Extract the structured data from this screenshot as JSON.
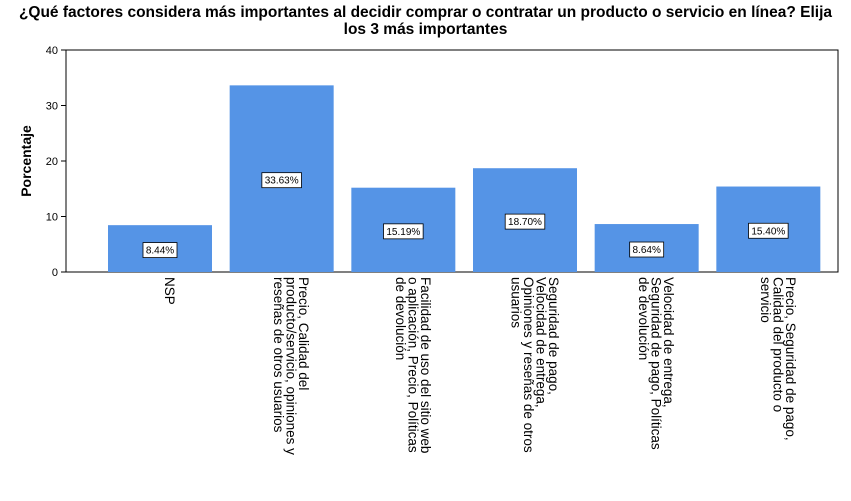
{
  "chart_data": {
    "type": "bar",
    "title": "¿Qué factores considera más importantes al decidir comprar o contratar un producto o servicio en línea? Elija\nlos 3 más importantes",
    "ylabel": "Porcentaje",
    "xlabel": "",
    "ylim": [
      0,
      40
    ],
    "yticks": [
      0,
      10,
      20,
      30,
      40
    ],
    "grid": false,
    "bar_color": "#5594e6",
    "categories": [
      "NSP",
      "Precio, Calidad del producto/servicio, opiniones y reseñas de otros usuarios",
      "Facilidad de uso del sitio web o aplicación, Precio, Políticas de devolución",
      "Seguridad de pago, Velocidad de entrega, Opiniones y reseñas de otros usuarios",
      "Velocidad de entrega, Seguridad de pago, Políticas de devolución",
      "Precio, Seguridad de pago, Calidad del producto o servicio"
    ],
    "category_lines": [
      [
        "NSP"
      ],
      [
        "Precio, Calidad del",
        "producto/servicio, opiniones y",
        "reseñas de otros usuarios"
      ],
      [
        "Facilidad de uso del sitio web",
        "o aplicación, Precio, Políticas",
        "de devolución"
      ],
      [
        "Seguridad de pago,",
        "Velocidad de entrega,",
        "Opiniones y reseñas de otros",
        "usuarios"
      ],
      [
        "Velocidad de entrega,",
        "Seguridad de pago, Políticas",
        "de devolución"
      ],
      [
        "Precio, Seguridad de pago,",
        "Calidad del producto o",
        "servicio"
      ]
    ],
    "values": [
      8.44,
      33.63,
      15.19,
      18.7,
      8.64,
      15.4
    ],
    "data_labels": [
      "8.44%",
      "33.63%",
      "15.19%",
      "18.70%",
      "8.64%",
      "15.40%"
    ]
  }
}
